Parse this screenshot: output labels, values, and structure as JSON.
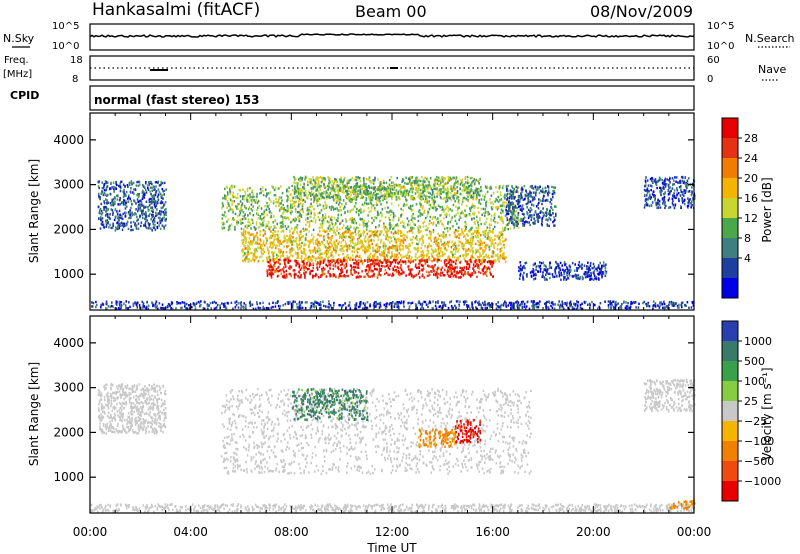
{
  "header": {
    "station": "Hankasalmi (fitACF)",
    "beam": "Beam 00",
    "date": "08/Nov/2009"
  },
  "status_panel": {
    "nsky_label": "N.Sky",
    "nsearch_label": "N.Search",
    "noise_ticks_left": [
      "10^5",
      "10^0"
    ],
    "noise_ticks_right": [
      "10^5",
      "10^0"
    ],
    "freq_label_1": "Freq.",
    "freq_label_2": "[MHz]",
    "freq_ticks": [
      "18",
      "8"
    ],
    "nave_label": "Nave",
    "nave_ticks": [
      "60",
      "0"
    ],
    "cpid_label": "CPID",
    "cpid_text": "normal (fast stereo) 153"
  },
  "power_panel": {
    "ylabel": "Slant Range [km]",
    "colorbar_label": "Power [dB]",
    "colorbar_ticks": [
      "28",
      "24",
      "20",
      "16",
      "12",
      "8",
      "4"
    ],
    "colors": [
      "#0000e6",
      "#1f3fa0",
      "#3f7f7f",
      "#4aa84a",
      "#c8d632",
      "#f5b400",
      "#f07d00",
      "#e63214",
      "#e60000"
    ]
  },
  "velocity_panel": {
    "ylabel": "Slant Range [km]",
    "colorbar_label": "Velocity [m s⁻¹]",
    "colorbar_ticks": [
      "1000",
      "500",
      "100",
      "25",
      "−25",
      "−100",
      "−500",
      "−1000"
    ],
    "colors": [
      "#2a3fb0",
      "#3a7a6a",
      "#3aa04a",
      "#88cc44",
      "#c8c8c8",
      "#f5b400",
      "#f08000",
      "#f04a10",
      "#e60000"
    ]
  },
  "xaxis": {
    "label": "Time UT",
    "ticks": [
      "00:00",
      "04:00",
      "08:00",
      "12:00",
      "16:00",
      "20:00",
      "00:00"
    ]
  },
  "chart_data": [
    {
      "type": "heatmap",
      "title": "Hankasalmi (fitACF)",
      "xlabel": "Time UT",
      "ylabel": "Slant Range [km]",
      "colorbar": "Power [dB]",
      "xlim": [
        0,
        24
      ],
      "ylim": [
        200,
        4600
      ],
      "x_ticks": [
        "00:00",
        "04:00",
        "08:00",
        "12:00",
        "16:00",
        "20:00",
        "00:00"
      ],
      "y_ticks": [
        1000,
        2000,
        3000,
        4000
      ],
      "color_range": [
        2,
        30
      ],
      "bands": [
        {
          "t0": 0.3,
          "t1": 3.0,
          "r0": 2000,
          "r1": 3100,
          "value": 8
        },
        {
          "t0": 0.0,
          "t1": 24.0,
          "r0": 250,
          "r1": 420,
          "value": 6
        },
        {
          "t0": 5.2,
          "t1": 17.0,
          "r0": 2000,
          "r1": 3000,
          "value": 14
        },
        {
          "t0": 6.0,
          "t1": 16.5,
          "r0": 1300,
          "r1": 2000,
          "value": 18
        },
        {
          "t0": 7.0,
          "t1": 16.0,
          "r0": 950,
          "r1": 1350,
          "value": 27
        },
        {
          "t0": 8.0,
          "t1": 15.5,
          "r0": 2700,
          "r1": 3200,
          "value": 14
        },
        {
          "t0": 16.5,
          "t1": 18.5,
          "r0": 2100,
          "r1": 3000,
          "value": 8
        },
        {
          "t0": 17.0,
          "t1": 20.5,
          "r0": 900,
          "r1": 1300,
          "value": 6
        },
        {
          "t0": 22.0,
          "t1": 24.0,
          "r0": 2500,
          "r1": 3200,
          "value": 7
        }
      ]
    },
    {
      "type": "heatmap",
      "title": "Hankasalmi (fitACF)",
      "xlabel": "Time UT",
      "ylabel": "Slant Range [km]",
      "colorbar": "Velocity [m s⁻¹]",
      "xlim": [
        0,
        24
      ],
      "ylim": [
        200,
        4600
      ],
      "x_ticks": [
        "00:00",
        "04:00",
        "08:00",
        "12:00",
        "16:00",
        "20:00",
        "00:00"
      ],
      "y_ticks": [
        1000,
        2000,
        3000,
        4000
      ],
      "color_range": [
        -1000,
        1000
      ],
      "bands": [
        {
          "t0": 0.3,
          "t1": 3.0,
          "r0": 2000,
          "r1": 3100,
          "value": 0
        },
        {
          "t0": 0.0,
          "t1": 24.0,
          "r0": 250,
          "r1": 420,
          "value": 0
        },
        {
          "t0": 5.2,
          "t1": 17.5,
          "r0": 1100,
          "r1": 3000,
          "value": 0
        },
        {
          "t0": 8.0,
          "t1": 11.0,
          "r0": 2300,
          "r1": 3000,
          "value": 150
        },
        {
          "t0": 13.0,
          "t1": 14.5,
          "r0": 1700,
          "r1": 2100,
          "value": -200
        },
        {
          "t0": 14.5,
          "t1": 15.5,
          "r0": 1800,
          "r1": 2300,
          "value": -1000
        },
        {
          "t0": 22.0,
          "t1": 24.0,
          "r0": 2500,
          "r1": 3200,
          "value": 0
        },
        {
          "t0": 23.0,
          "t1": 24.0,
          "r0": 300,
          "r1": 500,
          "value": -200
        }
      ]
    }
  ]
}
